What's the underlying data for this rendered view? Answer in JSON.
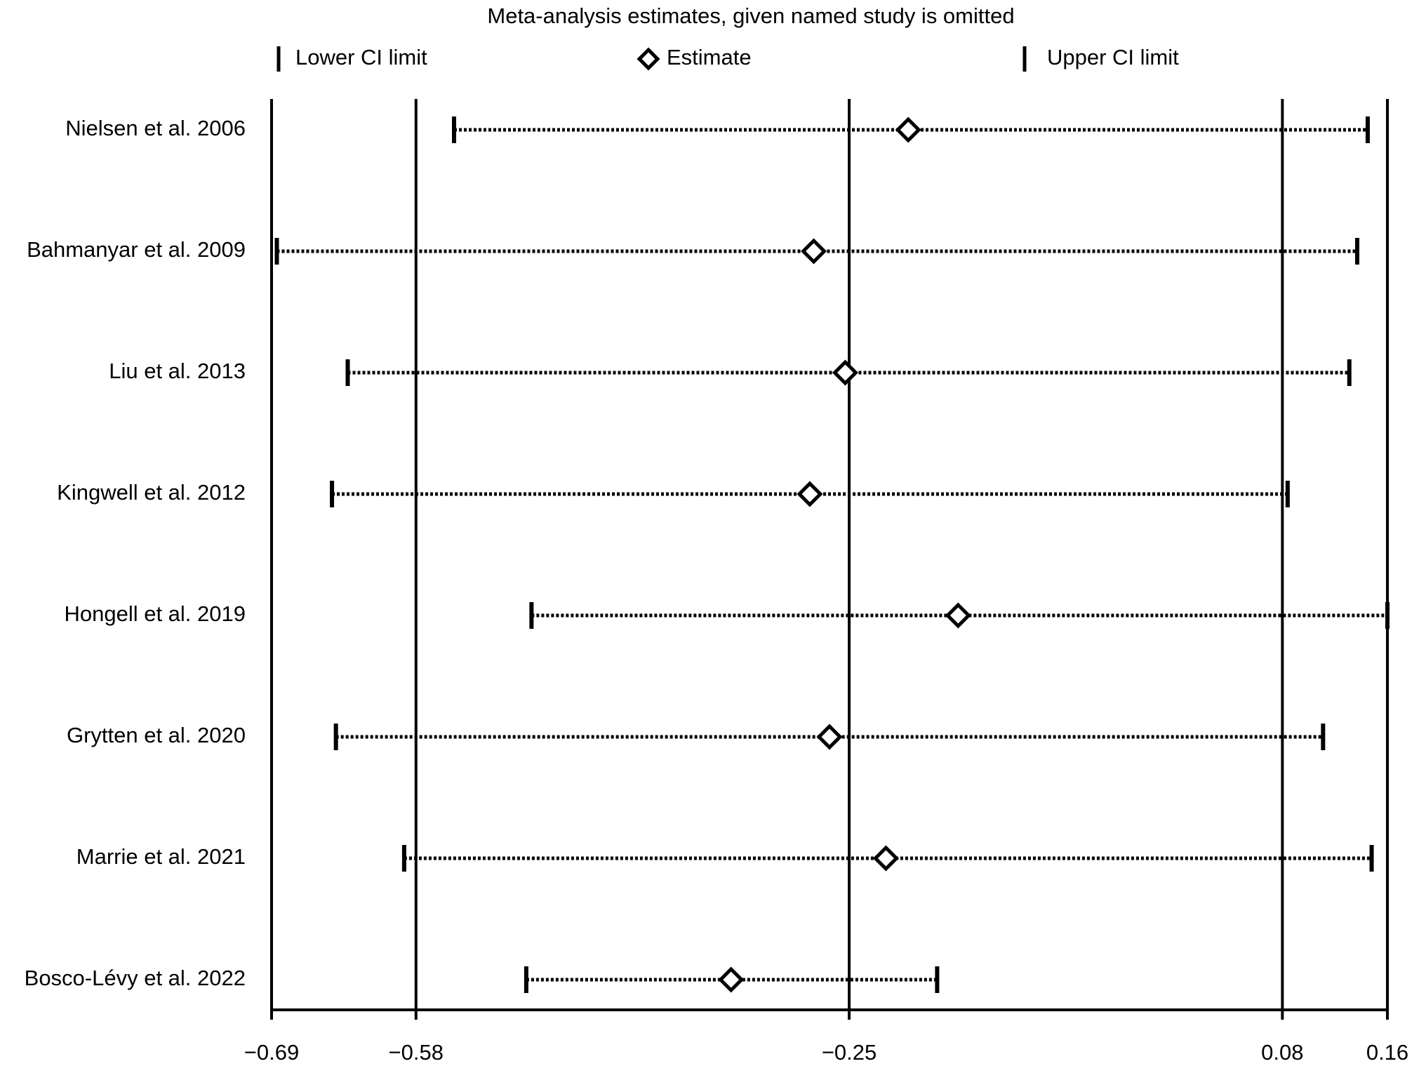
{
  "chart_data": {
    "type": "forest",
    "title": "Meta-analysis estimates, given named study is omitted",
    "categories": [
      "Nielsen et al. 2006",
      "Bahmanyar et al. 2009",
      "Liu et al. 2013",
      "Kingwell et al. 2012",
      "Hongell et al. 2019",
      "Grytten et al. 2020",
      "Marrie et al. 2021",
      "Bosco-Lévy et al. 2022"
    ],
    "series": [
      {
        "name": "Lower CI limit",
        "values": [
          -0.551,
          -0.686,
          -0.632,
          -0.644,
          -0.492,
          -0.641,
          -0.589,
          -0.496
        ]
      },
      {
        "name": "Estimate",
        "values": [
          -0.205,
          -0.277,
          -0.253,
          -0.28,
          -0.167,
          -0.265,
          -0.222,
          -0.34
        ]
      },
      {
        "name": "Upper CI limit",
        "values": [
          0.145,
          0.137,
          0.131,
          0.084,
          0.16,
          0.111,
          0.148,
          -0.183
        ]
      }
    ],
    "xlim": [
      -0.69,
      0.16
    ],
    "xticks": [
      {
        "value": -0.69,
        "label": "−0.69"
      },
      {
        "value": -0.58,
        "label": "−0.58"
      },
      {
        "value": -0.25,
        "label": "−0.25"
      },
      0.08,
      0.16
    ],
    "grid": true
  }
}
